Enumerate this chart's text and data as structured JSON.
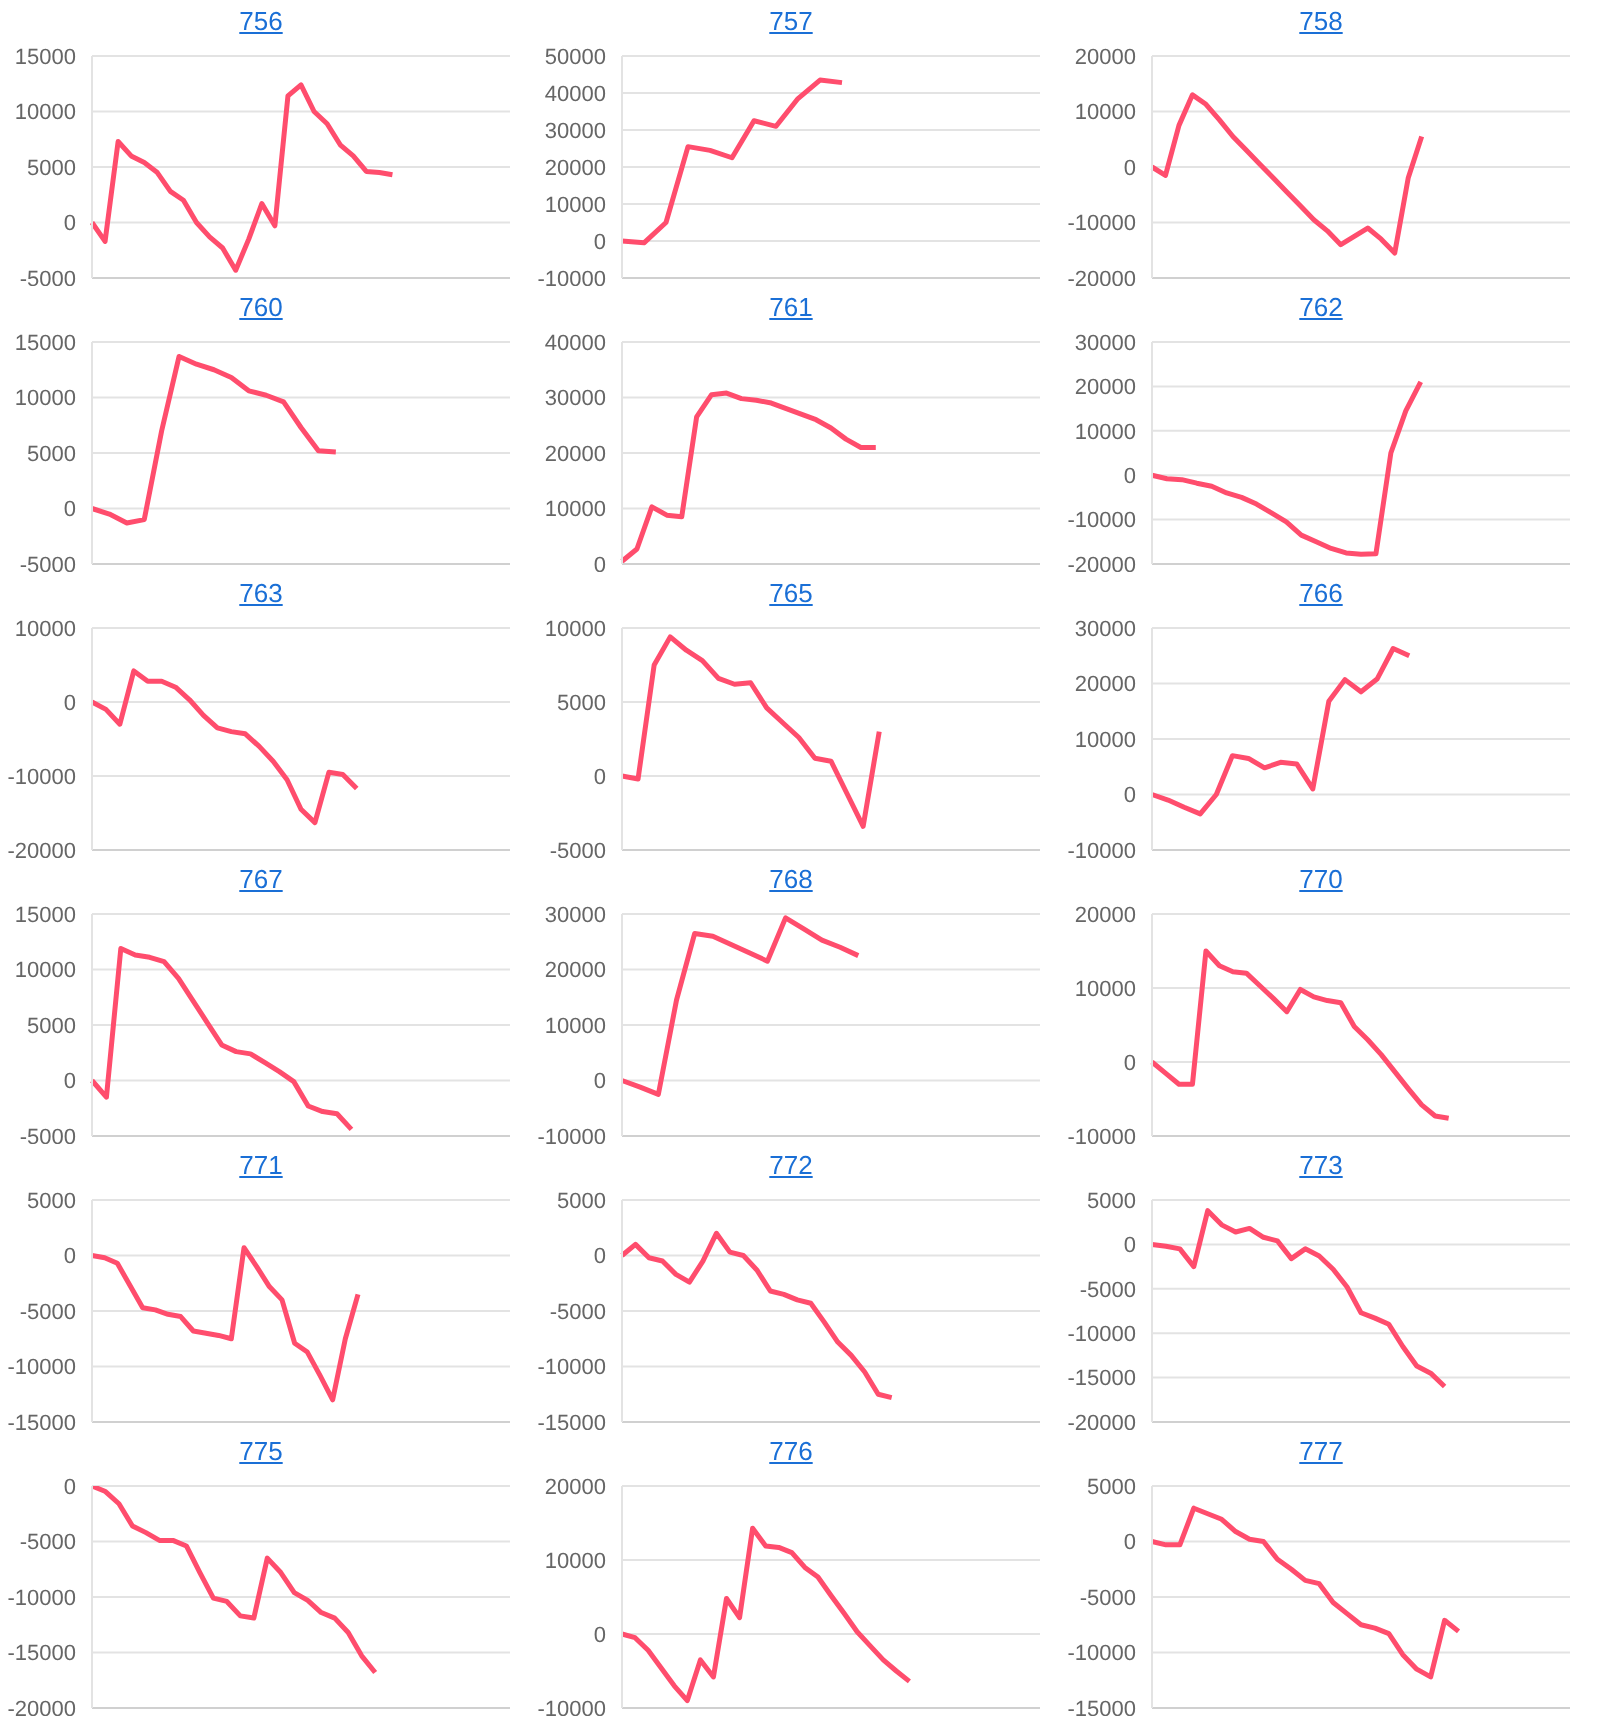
{
  "chart_data": [
    {
      "type": "line",
      "title": "756",
      "categories": [
        null,
        null,
        null,
        null,
        null,
        null,
        null,
        null,
        null,
        null,
        null,
        null,
        null,
        null,
        null,
        null,
        null,
        null,
        null,
        null,
        null,
        null,
        null,
        null,
        null,
        null,
        null,
        null,
        null,
        null,
        null,
        null,
        null
      ],
      "series": [
        {
          "color": "#ff4d6d",
          "values": [
            0,
            -1700,
            7300,
            6000,
            5400,
            4500,
            2800,
            2000,
            0,
            -1300,
            -2300,
            -4300,
            -1500,
            1700,
            -300,
            11400,
            12400,
            10000,
            8900,
            7000,
            6000,
            4600,
            4500,
            4300,
            null,
            null,
            null,
            null,
            null,
            null,
            null,
            null,
            null
          ]
        }
      ],
      "ylim": [
        -5000,
        15000
      ],
      "yticks": [
        -5000,
        0,
        5000,
        10000,
        15000
      ],
      "grid": "y",
      "tick_labels": "y",
      "marker": "none"
    },
    {
      "type": "line",
      "title": "757",
      "categories": [
        null,
        null,
        null,
        null,
        null,
        null,
        null,
        null,
        null,
        null,
        null,
        null,
        null,
        null,
        null,
        null,
        null,
        null,
        null,
        null
      ],
      "series": [
        {
          "color": "#ff4d6d",
          "values": [
            0,
            -500,
            5000,
            25500,
            24500,
            22500,
            32500,
            31000,
            38500,
            43500,
            42800,
            null,
            null,
            null,
            null,
            null,
            null,
            null,
            null,
            null
          ]
        }
      ],
      "ylim": [
        -10000,
        50000
      ],
      "yticks": [
        -10000,
        0,
        10000,
        20000,
        30000,
        40000,
        50000
      ],
      "grid": "y",
      "tick_labels": "y",
      "marker": "none"
    },
    {
      "type": "line",
      "title": "758",
      "categories": [
        null,
        null,
        null,
        null,
        null,
        null,
        null,
        null,
        null,
        null,
        null,
        null,
        null,
        null,
        null,
        null,
        null,
        null,
        null,
        null,
        null,
        null,
        null,
        null,
        null,
        null,
        null,
        null,
        null,
        null,
        null,
        null
      ],
      "series": [
        {
          "color": "#ff4d6d",
          "values": [
            0,
            -1500,
            7500,
            13000,
            11300,
            8500,
            5500,
            3000,
            500,
            -2000,
            -4500,
            -7000,
            -9500,
            -11500,
            -14000,
            -12500,
            -11000,
            -13000,
            -15500,
            -2000,
            5500,
            null,
            null,
            null,
            null,
            null,
            null,
            null,
            null,
            null,
            null,
            null
          ]
        }
      ],
      "ylim": [
        -20000,
        20000
      ],
      "yticks": [
        -20000,
        -10000,
        0,
        10000,
        20000
      ],
      "grid": "y",
      "tick_labels": "y",
      "marker": "none"
    },
    {
      "type": "line",
      "title": "760",
      "categories": [
        null,
        null,
        null,
        null,
        null,
        null,
        null,
        null,
        null,
        null,
        null,
        null,
        null,
        null,
        null,
        null,
        null,
        null,
        null,
        null,
        null,
        null,
        null,
        null,
        null
      ],
      "series": [
        {
          "color": "#ff4d6d",
          "values": [
            0,
            -500,
            -1300,
            -1000,
            7000,
            13700,
            13000,
            12500,
            11800,
            10600,
            10200,
            9600,
            7300,
            5200,
            5100,
            null,
            null,
            null,
            null,
            null,
            null,
            null,
            null,
            null,
            null
          ]
        }
      ],
      "ylim": [
        -5000,
        15000
      ],
      "yticks": [
        -5000,
        0,
        5000,
        10000,
        15000
      ],
      "grid": "y",
      "tick_labels": "y",
      "marker": "none"
    },
    {
      "type": "line",
      "title": "761",
      "categories": [
        null,
        null,
        null,
        null,
        null,
        null,
        null,
        null,
        null,
        null,
        null,
        null,
        null,
        null,
        null,
        null,
        null,
        null,
        null,
        null,
        null,
        null,
        null,
        null,
        null,
        null,
        null,
        null,
        null
      ],
      "series": [
        {
          "color": "#ff4d6d",
          "values": [
            500,
            2700,
            10300,
            8800,
            8500,
            26500,
            30500,
            30800,
            29800,
            29500,
            29000,
            28000,
            27000,
            26000,
            24500,
            22500,
            21000,
            21000,
            null,
            null,
            null,
            null,
            null,
            null,
            null,
            null,
            null,
            null,
            null
          ]
        }
      ],
      "ylim": [
        0,
        40000
      ],
      "yticks": [
        0,
        10000,
        20000,
        30000,
        40000
      ],
      "grid": "y",
      "tick_labels": "y",
      "marker": "none"
    },
    {
      "type": "line",
      "title": "762",
      "categories": [
        null,
        null,
        null,
        null,
        null,
        null,
        null,
        null,
        null,
        null,
        null,
        null,
        null,
        null,
        null,
        null,
        null,
        null,
        null,
        null,
        null,
        null,
        null,
        null,
        null,
        null,
        null,
        null,
        null
      ],
      "series": [
        {
          "color": "#ff4d6d",
          "values": [
            0,
            -800,
            -1000,
            -1800,
            -2500,
            -4000,
            -5000,
            -6500,
            -8500,
            -10500,
            -13500,
            -15000,
            -16500,
            -17500,
            -17800,
            -17700,
            5000,
            14500,
            21000,
            null,
            null,
            null,
            null,
            null,
            null,
            null,
            null,
            null,
            null
          ]
        }
      ],
      "ylim": [
        -20000,
        30000
      ],
      "yticks": [
        -20000,
        -10000,
        0,
        10000,
        20000,
        30000
      ],
      "grid": "y",
      "tick_labels": "y",
      "marker": "none"
    },
    {
      "type": "line",
      "title": "763",
      "categories": [
        null,
        null,
        null,
        null,
        null,
        null,
        null,
        null,
        null,
        null,
        null,
        null,
        null,
        null,
        null,
        null,
        null,
        null,
        null,
        null,
        null,
        null,
        null,
        null,
        null,
        null,
        null,
        null,
        null,
        null,
        null
      ],
      "series": [
        {
          "color": "#ff4d6d",
          "values": [
            0,
            -1000,
            -3000,
            4200,
            2800,
            2800,
            2000,
            300,
            -1800,
            -3500,
            -4000,
            -4300,
            -6000,
            -8000,
            -10500,
            -14500,
            -16300,
            -9500,
            -9800,
            -11700,
            null,
            null,
            null,
            null,
            null,
            null,
            null,
            null,
            null,
            null,
            null
          ]
        }
      ],
      "ylim": [
        -20000,
        10000
      ],
      "yticks": [
        -20000,
        -10000,
        0,
        10000
      ],
      "grid": "y",
      "tick_labels": "y",
      "marker": "none"
    },
    {
      "type": "line",
      "title": "765",
      "categories": [
        null,
        null,
        null,
        null,
        null,
        null,
        null,
        null,
        null,
        null,
        null,
        null,
        null,
        null,
        null,
        null,
        null,
        null,
        null,
        null,
        null,
        null,
        null,
        null,
        null,
        null,
        null
      ],
      "series": [
        {
          "color": "#ff4d6d",
          "values": [
            0,
            -200,
            7500,
            9400,
            8500,
            7800,
            6600,
            6200,
            6300,
            4600,
            3600,
            2600,
            1200,
            1000,
            -1200,
            -3400,
            3000,
            null,
            null,
            null,
            null,
            null,
            null,
            null,
            null,
            null,
            null
          ]
        }
      ],
      "ylim": [
        -5000,
        10000
      ],
      "yticks": [
        -5000,
        0,
        5000,
        10000
      ],
      "grid": "y",
      "tick_labels": "y",
      "marker": "none"
    },
    {
      "type": "line",
      "title": "766",
      "categories": [
        null,
        null,
        null,
        null,
        null,
        null,
        null,
        null,
        null,
        null,
        null,
        null,
        null,
        null,
        null,
        null,
        null,
        null,
        null,
        null,
        null,
        null,
        null,
        null,
        null,
        null,
        null
      ],
      "series": [
        {
          "color": "#ff4d6d",
          "values": [
            0,
            -1000,
            -2300,
            -3500,
            0,
            7000,
            6500,
            4800,
            5800,
            5500,
            1000,
            16800,
            20700,
            18500,
            20800,
            26300,
            25000,
            null,
            null,
            null,
            null,
            null,
            null,
            null,
            null,
            null,
            null
          ]
        }
      ],
      "ylim": [
        -10000,
        30000
      ],
      "yticks": [
        -10000,
        0,
        10000,
        20000,
        30000
      ],
      "grid": "y",
      "tick_labels": "y",
      "marker": "none"
    },
    {
      "type": "line",
      "title": "767",
      "categories": [
        null,
        null,
        null,
        null,
        null,
        null,
        null,
        null,
        null,
        null,
        null,
        null,
        null,
        null,
        null,
        null,
        null,
        null,
        null,
        null,
        null,
        null,
        null,
        null,
        null,
        null,
        null,
        null,
        null,
        null
      ],
      "series": [
        {
          "color": "#ff4d6d",
          "values": [
            0,
            -1500,
            11900,
            11300,
            11100,
            10700,
            9200,
            7200,
            5200,
            3200,
            2600,
            2400,
            1600,
            800,
            -100,
            -2300,
            -2800,
            -3000,
            -4400,
            null,
            null,
            null,
            null,
            null,
            null,
            null,
            null,
            null,
            null,
            null
          ]
        }
      ],
      "ylim": [
        -5000,
        15000
      ],
      "yticks": [
        -5000,
        0,
        5000,
        10000,
        15000
      ],
      "grid": "y",
      "tick_labels": "y",
      "marker": "none"
    },
    {
      "type": "line",
      "title": "768",
      "categories": [
        null,
        null,
        null,
        null,
        null,
        null,
        null,
        null,
        null,
        null,
        null,
        null,
        null,
        null,
        null,
        null,
        null,
        null,
        null,
        null,
        null,
        null,
        null,
        null
      ],
      "series": [
        {
          "color": "#ff4d6d",
          "values": [
            0,
            -1200,
            -2500,
            14500,
            26500,
            26000,
            24500,
            23000,
            21500,
            29300,
            27300,
            25300,
            24000,
            22500,
            null,
            null,
            null,
            null,
            null,
            null,
            null,
            null,
            null,
            null
          ]
        }
      ],
      "ylim": [
        -10000,
        30000
      ],
      "yticks": [
        -10000,
        0,
        10000,
        20000,
        30000
      ],
      "grid": "y",
      "tick_labels": "y",
      "marker": "none"
    },
    {
      "type": "line",
      "title": "770",
      "categories": [
        null,
        null,
        null,
        null,
        null,
        null,
        null,
        null,
        null,
        null,
        null,
        null,
        null,
        null,
        null,
        null,
        null,
        null,
        null,
        null,
        null,
        null,
        null,
        null,
        null,
        null,
        null,
        null,
        null,
        null,
        null,
        null
      ],
      "series": [
        {
          "color": "#ff4d6d",
          "values": [
            0,
            -1500,
            -3000,
            -3000,
            15000,
            13000,
            12200,
            12000,
            10300,
            8600,
            6800,
            9800,
            8800,
            8300,
            8000,
            4800,
            3000,
            1000,
            -1300,
            -3600,
            -5800,
            -7300,
            -7600,
            null,
            null,
            null,
            null,
            null,
            null,
            null,
            null,
            null
          ]
        }
      ],
      "ylim": [
        -10000,
        20000
      ],
      "yticks": [
        -10000,
        0,
        10000,
        20000
      ],
      "grid": "y",
      "tick_labels": "y",
      "marker": "none"
    },
    {
      "type": "line",
      "title": "771",
      "categories": [
        null,
        null,
        null,
        null,
        null,
        null,
        null,
        null,
        null,
        null,
        null,
        null,
        null,
        null,
        null,
        null,
        null,
        null,
        null,
        null,
        null,
        null,
        null,
        null,
        null,
        null,
        null,
        null,
        null,
        null,
        null,
        null,
        null,
        null
      ],
      "series": [
        {
          "color": "#ff4d6d",
          "values": [
            0,
            -200,
            -700,
            -2700,
            -4700,
            -4900,
            -5300,
            -5500,
            -6800,
            -7000,
            -7200,
            -7500,
            700,
            -1000,
            -2800,
            -4000,
            -7900,
            -8700,
            -10800,
            -13000,
            -7500,
            -3500,
            null,
            null,
            null,
            null,
            null,
            null,
            null,
            null,
            null,
            null,
            null,
            null
          ]
        }
      ],
      "ylim": [
        -15000,
        5000
      ],
      "yticks": [
        -15000,
        -10000,
        -5000,
        0,
        5000
      ],
      "grid": "y",
      "tick_labels": "y",
      "marker": "none"
    },
    {
      "type": "line",
      "title": "772",
      "categories": [
        null,
        null,
        null,
        null,
        null,
        null,
        null,
        null,
        null,
        null,
        null,
        null,
        null,
        null,
        null,
        null,
        null,
        null,
        null,
        null,
        null,
        null,
        null,
        null,
        null,
        null,
        null,
        null,
        null,
        null,
        null,
        null
      ],
      "series": [
        {
          "color": "#ff4d6d",
          "values": [
            0,
            1000,
            -200,
            -500,
            -1700,
            -2400,
            -500,
            2000,
            300,
            0,
            -1300,
            -3200,
            -3500,
            -4000,
            -4300,
            -6000,
            -7800,
            -9000,
            -10500,
            -12500,
            -12800,
            null,
            null,
            null,
            null,
            null,
            null,
            null,
            null,
            null,
            null,
            null
          ]
        }
      ],
      "ylim": [
        -15000,
        5000
      ],
      "yticks": [
        -15000,
        -10000,
        -5000,
        0,
        5000
      ],
      "grid": "y",
      "tick_labels": "y",
      "marker": "none"
    },
    {
      "type": "line",
      "title": "773",
      "categories": [
        null,
        null,
        null,
        null,
        null,
        null,
        null,
        null,
        null,
        null,
        null,
        null,
        null,
        null,
        null,
        null,
        null,
        null,
        null,
        null,
        null,
        null,
        null,
        null,
        null,
        null,
        null,
        null,
        null,
        null,
        null
      ],
      "series": [
        {
          "color": "#ff4d6d",
          "values": [
            0,
            -200,
            -500,
            -2500,
            3800,
            2200,
            1400,
            1800,
            800,
            400,
            -1600,
            -500,
            -1300,
            -2800,
            -4800,
            -7700,
            -8300,
            -9000,
            -11500,
            -13700,
            -14500,
            -16000,
            null,
            null,
            null,
            null,
            null,
            null,
            null,
            null,
            null
          ]
        }
      ],
      "ylim": [
        -20000,
        5000
      ],
      "yticks": [
        -20000,
        -15000,
        -10000,
        -5000,
        0,
        5000
      ],
      "grid": "y",
      "tick_labels": "y",
      "marker": "none"
    },
    {
      "type": "line",
      "title": "775",
      "categories": [
        null,
        null,
        null,
        null,
        null,
        null,
        null,
        null,
        null,
        null,
        null,
        null,
        null,
        null,
        null,
        null,
        null,
        null,
        null,
        null,
        null,
        null,
        null,
        null,
        null,
        null,
        null,
        null,
        null,
        null,
        null,
        null
      ],
      "series": [
        {
          "color": "#ff4d6d",
          "values": [
            0,
            -500,
            -1600,
            -3600,
            -4200,
            -4900,
            -4900,
            -5400,
            -7800,
            -10100,
            -10400,
            -11700,
            -11900,
            -6500,
            -7800,
            -9600,
            -10300,
            -11400,
            -11900,
            -13200,
            -15300,
            -16800,
            null,
            null,
            null,
            null,
            null,
            null,
            null,
            null,
            null,
            null
          ]
        }
      ],
      "ylim": [
        -20000,
        0
      ],
      "yticks": [
        -20000,
        -15000,
        -10000,
        -5000,
        0
      ],
      "grid": "y",
      "tick_labels": "y",
      "marker": "none"
    },
    {
      "type": "line",
      "title": "776",
      "categories": [
        null,
        null,
        null,
        null,
        null,
        null,
        null,
        null,
        null,
        null,
        null,
        null,
        null,
        null,
        null,
        null,
        null,
        null,
        null,
        null,
        null,
        null,
        null,
        null,
        null,
        null,
        null,
        null,
        null,
        null,
        null,
        null,
        null
      ],
      "series": [
        {
          "color": "#ff4d6d",
          "values": [
            0,
            -500,
            -2200,
            -4600,
            -7000,
            -9000,
            -3500,
            -5800,
            4800,
            2200,
            14300,
            11900,
            11700,
            11000,
            9000,
            7700,
            5200,
            2800,
            300,
            -1600,
            -3500,
            -5000,
            -6400,
            null,
            null,
            null,
            null,
            null,
            null,
            null,
            null,
            null,
            null
          ]
        }
      ],
      "ylim": [
        -10000,
        20000
      ],
      "yticks": [
        -10000,
        0,
        10000,
        20000
      ],
      "grid": "y",
      "tick_labels": "y",
      "marker": "none"
    },
    {
      "type": "line",
      "title": "777",
      "categories": [
        null,
        null,
        null,
        null,
        null,
        null,
        null,
        null,
        null,
        null,
        null,
        null,
        null,
        null,
        null,
        null,
        null,
        null,
        null,
        null,
        null,
        null,
        null,
        null,
        null,
        null,
        null,
        null,
        null,
        null,
        null
      ],
      "series": [
        {
          "color": "#ff4d6d",
          "values": [
            0,
            -300,
            -300,
            3000,
            2500,
            2000,
            900,
            200,
            0,
            -1600,
            -2500,
            -3500,
            -3800,
            -5500,
            -6500,
            -7500,
            -7800,
            -8300,
            -10200,
            -11500,
            -12200,
            -7100,
            -8100,
            null,
            null,
            null,
            null,
            null,
            null,
            null,
            null
          ]
        }
      ],
      "ylim": [
        -15000,
        5000
      ],
      "yticks": [
        -15000,
        -10000,
        -5000,
        0,
        5000
      ],
      "grid": "y",
      "tick_labels": "y",
      "marker": "none"
    }
  ]
}
